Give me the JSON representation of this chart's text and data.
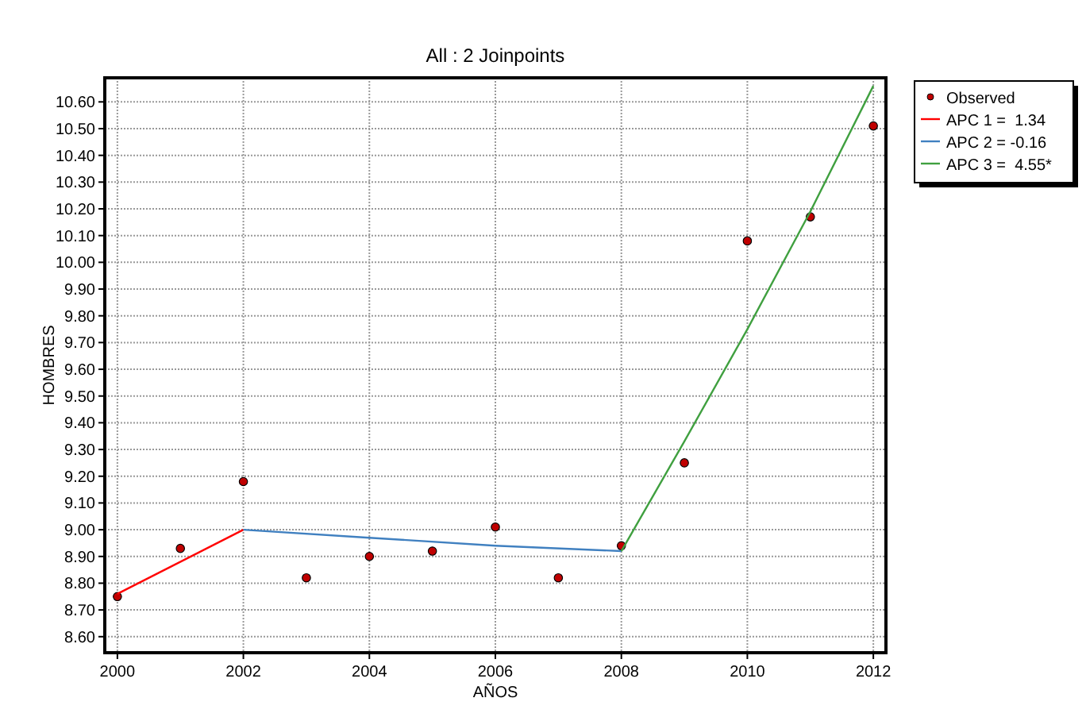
{
  "chart_data": {
    "type": "scatter",
    "title": "All : 2 Joinpoints",
    "xlabel": "AÑOS",
    "ylabel": "HOMBRES",
    "x": [
      2000,
      2001,
      2002,
      2003,
      2004,
      2005,
      2006,
      2007,
      2008,
      2009,
      2010,
      2011,
      2012
    ],
    "series": [
      {
        "name": "Observed",
        "color": "#c00000",
        "marker": "circle",
        "values": [
          8.75,
          8.93,
          9.18,
          8.82,
          8.9,
          8.92,
          9.01,
          8.82,
          8.94,
          9.25,
          10.08,
          10.17,
          10.51
        ]
      },
      {
        "name": "APC 1 =  1.34",
        "type": "line",
        "color": "#ff0000",
        "x": [
          2000,
          2002
        ],
        "values": [
          8.76,
          9.0
        ]
      },
      {
        "name": "APC 2 = -0.16",
        "type": "line",
        "color": "#4080c0",
        "x": [
          2002,
          2004,
          2006,
          2008
        ],
        "values": [
          9.0,
          8.97,
          8.94,
          8.92
        ]
      },
      {
        "name": "APC 3 =  4.55*",
        "type": "line",
        "color": "#40a040",
        "x": [
          2008,
          2009,
          2010,
          2011,
          2012
        ],
        "values": [
          8.92,
          9.33,
          9.75,
          10.19,
          10.66
        ]
      }
    ],
    "xlim": [
      1999.8,
      2012.2
    ],
    "xticks": [
      2000,
      2002,
      2004,
      2006,
      2008,
      2010,
      2012
    ],
    "ylim": [
      8.54,
      10.69
    ],
    "yticks": [
      {
        "value": 8.6,
        "label": "8.60"
      },
      {
        "value": 8.7,
        "label": "8.70"
      },
      {
        "value": 8.8,
        "label": "8.80"
      },
      {
        "value": 8.9,
        "label": "8.90"
      },
      {
        "value": 9.0,
        "label": "9.00"
      },
      {
        "value": 9.1,
        "label": "9.10"
      },
      {
        "value": 9.2,
        "label": "9.20"
      },
      {
        "value": 9.3,
        "label": "9.30"
      },
      {
        "value": 9.4,
        "label": "9.40"
      },
      {
        "value": 9.5,
        "label": "9.50"
      },
      {
        "value": 9.6,
        "label": "9.60"
      },
      {
        "value": 9.7,
        "label": "9.70"
      },
      {
        "value": 9.8,
        "label": "9.80"
      },
      {
        "value": 9.9,
        "label": "9.90"
      },
      {
        "value": 10.0,
        "label": "10.00"
      },
      {
        "value": 10.1,
        "label": "10.10"
      },
      {
        "value": 10.2,
        "label": "10.20"
      },
      {
        "value": 10.3,
        "label": "10.30"
      },
      {
        "value": 10.4,
        "label": "10.40"
      },
      {
        "value": 10.5,
        "label": "10.50"
      },
      {
        "value": 10.6,
        "label": "10.60"
      }
    ],
    "grid": true,
    "legend": "top right",
    "line_style": "solid"
  }
}
